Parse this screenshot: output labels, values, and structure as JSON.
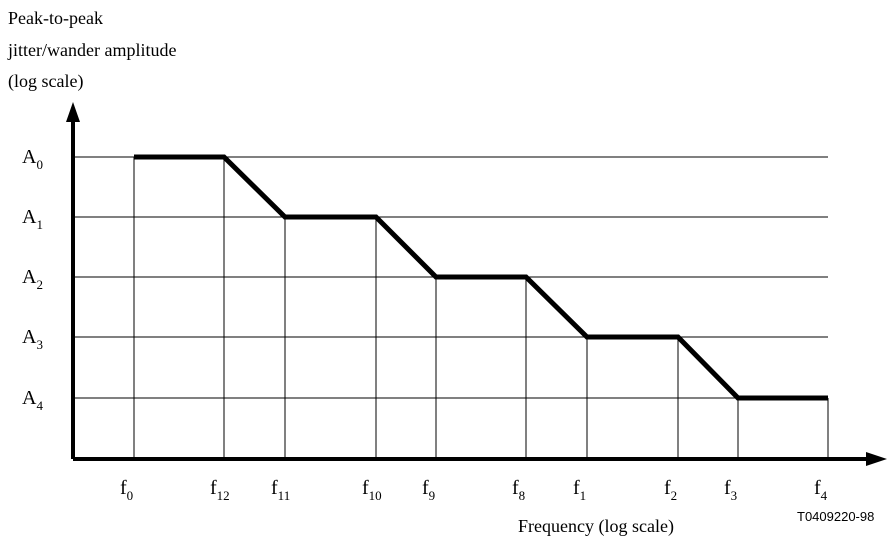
{
  "y_axis_label": [
    "Peak-to-peak",
    "jitter/wander amplitude",
    "(log scale)"
  ],
  "x_axis_label": "Frequency (log scale)",
  "figure_id": "T0409220-98",
  "amplitude_levels": [
    {
      "base": "A",
      "sub": "0"
    },
    {
      "base": "A",
      "sub": "1"
    },
    {
      "base": "A",
      "sub": "2"
    },
    {
      "base": "A",
      "sub": "3"
    },
    {
      "base": "A",
      "sub": "4"
    }
  ],
  "frequency_ticks": [
    {
      "base": "f",
      "sub": "0"
    },
    {
      "base": "f",
      "sub": "12"
    },
    {
      "base": "f",
      "sub": "11"
    },
    {
      "base": "f",
      "sub": "10"
    },
    {
      "base": "f",
      "sub": "9"
    },
    {
      "base": "f",
      "sub": "8"
    },
    {
      "base": "f",
      "sub": "1"
    },
    {
      "base": "f",
      "sub": "2"
    },
    {
      "base": "f",
      "sub": "3"
    },
    {
      "base": "f",
      "sub": "4"
    }
  ],
  "mask_profile": [
    {
      "from": "f0",
      "to": "f12",
      "level": "A0"
    },
    {
      "from": "f11",
      "to": "f10",
      "level": "A1"
    },
    {
      "from": "f9",
      "to": "f8",
      "level": "A2"
    },
    {
      "from": "f1",
      "to": "f2",
      "level": "A3"
    },
    {
      "from": "f3",
      "to": "f4",
      "level": "A4"
    }
  ]
}
